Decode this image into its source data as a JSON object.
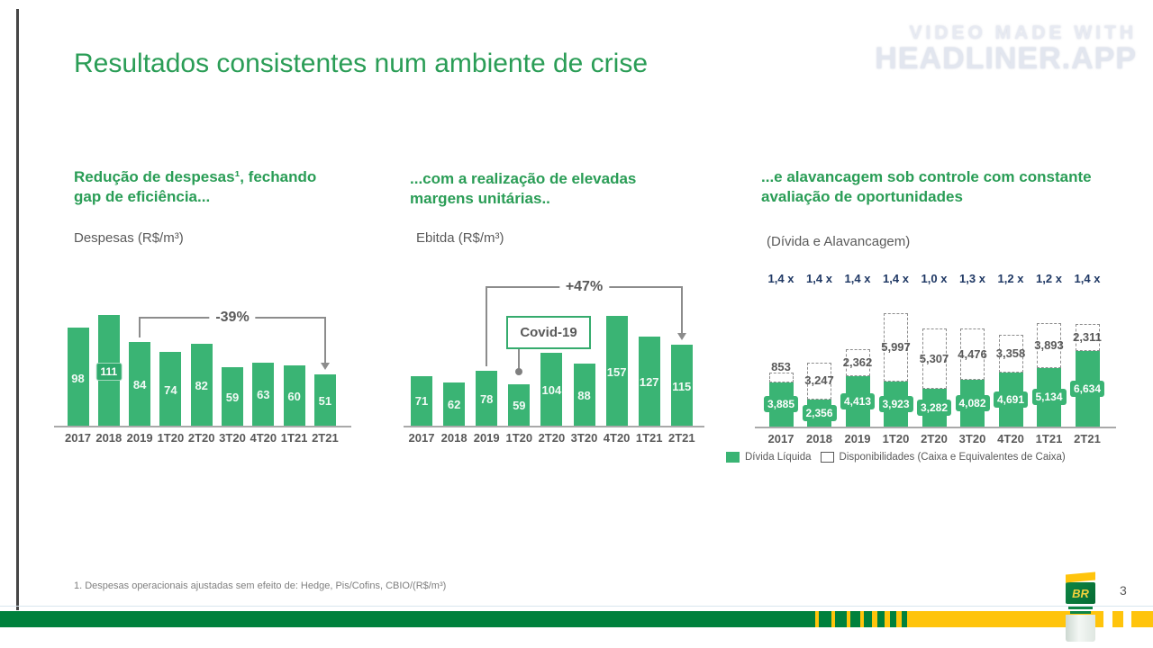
{
  "watermark": {
    "line1": "VIDEO MADE WITH",
    "line2": "HEADLINER.APP"
  },
  "title": "Resultados consistentes num ambiente de crise",
  "sections": {
    "despesas": {
      "heading": "Redução de despesas¹, fechando gap de eficiência...",
      "subtitle": "Despesas (R$/m³)"
    },
    "ebitda": {
      "heading": "...com a realização de elevadas margens unitárias..",
      "subtitle": "Ebitda (R$/m³)"
    },
    "divida": {
      "heading": "...e alavancagem sob controle com constante avaliação de oportunidades",
      "subtitle": "(Dívida e Alavancagem)"
    }
  },
  "chart_data": [
    {
      "type": "bar",
      "name": "despesas",
      "title": "Despesas (R$/m³)",
      "categories": [
        "2017",
        "2018",
        "2019",
        "1T20",
        "2T20",
        "3T20",
        "4T20",
        "1T21",
        "2T21"
      ],
      "values": [
        98,
        111,
        84,
        74,
        82,
        59,
        63,
        60,
        51
      ],
      "bar_color": "#3ab474",
      "annotation": {
        "label": "-39%",
        "from_category": "2019",
        "to_category": "2T21"
      }
    },
    {
      "type": "bar",
      "name": "ebitda",
      "title": "Ebitda (R$/m³)",
      "categories": [
        "2017",
        "2018",
        "2019",
        "1T20",
        "2T20",
        "3T20",
        "4T20",
        "1T21",
        "2T21"
      ],
      "values": [
        71,
        62,
        78,
        59,
        104,
        88,
        157,
        127,
        115
      ],
      "bar_color": "#3ab474",
      "annotation": {
        "label": "+47%",
        "from_category": "2019",
        "to_category": "2T21"
      },
      "callout": {
        "label": "Covid-19",
        "target_category": "1T20"
      }
    },
    {
      "type": "stacked-bar",
      "name": "divida",
      "title": "(Dívida e Alavancagem)",
      "categories": [
        "2017",
        "2018",
        "2019",
        "1T20",
        "2T20",
        "3T20",
        "4T20",
        "1T21",
        "2T21"
      ],
      "series": [
        {
          "name": "Dívida Líquida",
          "color": "#3ab474",
          "values": [
            3885,
            2356,
            4413,
            3923,
            3282,
            4082,
            4691,
            5134,
            6634
          ],
          "labels": [
            "3,885",
            "2,356",
            "4,413",
            "3,923",
            "3,282",
            "4,082",
            "4,691",
            "5,134",
            "6,634"
          ]
        },
        {
          "name": "Disponibilidades (Caixa e Equivalentes de Caixa)",
          "color": "#ffffff",
          "values": [
            853,
            3247,
            2362,
            5997,
            5307,
            4476,
            3358,
            3893,
            2311
          ],
          "labels": [
            "853",
            "3,247",
            "2,362",
            "5,997",
            "5,307",
            "4,476",
            "3,358",
            "3,893",
            "2,311"
          ]
        }
      ],
      "leverage_ratios": [
        "1,4 x",
        "1,4 x",
        "1,4 x",
        "1,4 x",
        "1,0 x",
        "1,3 x",
        "1,2 x",
        "1,2 x",
        "1,4 x"
      ],
      "legend": [
        "Dívida Líquida",
        "Disponibilidades (Caixa e Equivalentes de Caixa)"
      ]
    }
  ],
  "footer": {
    "footnote": "1. Despesas operacionais ajustadas sem efeito de: Hedge, Pis/Cofins, CBIO/(R$/m³)",
    "page_number": "3",
    "logo_text": "BR"
  },
  "colors": {
    "bar_green": "#3ab474",
    "title_green": "#2a9d56",
    "leverage_navy": "#1f3864",
    "footer_green": "#00813c",
    "footer_yellow": "#ffc40c"
  }
}
